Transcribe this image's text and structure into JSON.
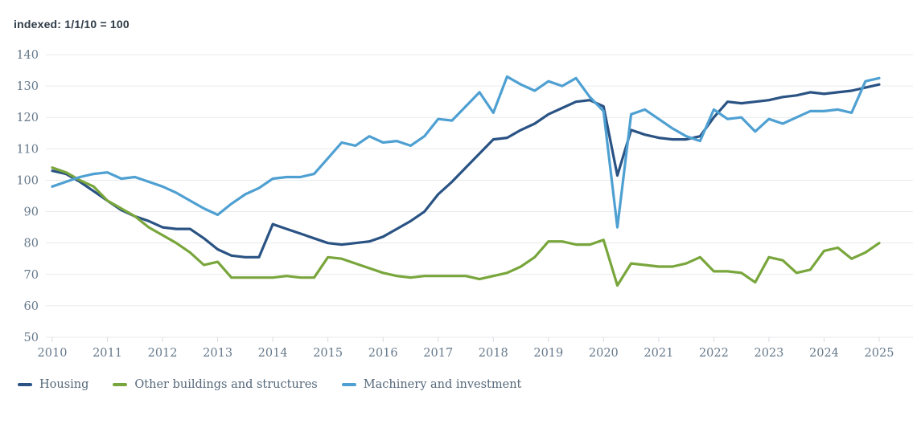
{
  "title": "indexed: 1/1/10 = 100",
  "chart_data": {
    "type": "line",
    "title": "indexed: 1/1/10 = 100",
    "x_frequency": "quarterly",
    "x_year_ticks": [
      2010,
      2011,
      2012,
      2013,
      2014,
      2015,
      2016,
      2017,
      2018,
      2019,
      2020,
      2021,
      2022,
      2023,
      2024,
      2025
    ],
    "y_ticks": [
      50,
      60,
      70,
      80,
      90,
      100,
      110,
      120,
      130,
      140
    ],
    "ylim": [
      50,
      140
    ],
    "grid": "horizontal",
    "legend_position": "bottom-left",
    "colors": {
      "grid": "#e8eaec",
      "tick": "#d9dce0",
      "axis_text": "#66798b"
    },
    "series": [
      {
        "name": "Housing",
        "color": "#2a5384",
        "values": [
          103,
          102,
          99.5,
          96.5,
          93.5,
          90.5,
          88.5,
          87,
          85,
          84.5,
          84.5,
          81.5,
          78,
          76,
          75.5,
          75.5,
          86,
          84.5,
          83,
          81.5,
          80,
          79.5,
          80,
          80.5,
          82,
          84.5,
          87,
          90,
          95.5,
          99.5,
          104,
          108.5,
          113,
          113.5,
          116,
          118,
          121,
          123,
          125,
          125.5,
          123.5,
          101.5,
          116,
          114.5,
          113.5,
          113,
          113,
          114,
          120,
          125,
          124.5,
          125,
          125.5,
          126.5,
          127,
          128,
          127.5,
          128,
          128.5,
          129.5,
          130.5
        ]
      },
      {
        "name": "Other buildings and structures",
        "color": "#79a63c",
        "values": [
          104,
          102.5,
          100,
          98,
          93.5,
          91,
          88.5,
          85,
          82.5,
          80,
          77,
          73,
          74,
          69,
          69,
          69,
          69,
          69.5,
          69,
          69,
          75.5,
          75,
          73.5,
          72,
          70.5,
          69.5,
          69,
          69.5,
          69.5,
          69.5,
          69.5,
          68.5,
          69.5,
          70.5,
          72.5,
          75.5,
          80.5,
          80.5,
          79.5,
          79.5,
          81,
          66.5,
          73.5,
          73,
          72.5,
          72.5,
          73.5,
          75.5,
          71,
          71,
          70.5,
          67.5,
          75.5,
          74.5,
          70.5,
          71.5,
          77.5,
          78.5,
          75,
          77,
          80
        ]
      },
      {
        "name": "Machinery and investment",
        "color": "#4fa0d2",
        "values": [
          98,
          99.5,
          101,
          102,
          102.5,
          100.5,
          101,
          99.5,
          98,
          96,
          93.5,
          91,
          89,
          92.5,
          95.5,
          97.5,
          100.5,
          101,
          101,
          102,
          107,
          112,
          111,
          114,
          112,
          112.5,
          111,
          114,
          119.5,
          119,
          123.5,
          128,
          121.5,
          133,
          130.5,
          128.5,
          131.5,
          130,
          132.5,
          126.5,
          122,
          85,
          121,
          122.5,
          119.5,
          116.5,
          114,
          112.5,
          122.5,
          119.5,
          120,
          115.5,
          119.5,
          118,
          120,
          122,
          122,
          122.5,
          121.5,
          131.5,
          132.5
        ]
      }
    ]
  }
}
